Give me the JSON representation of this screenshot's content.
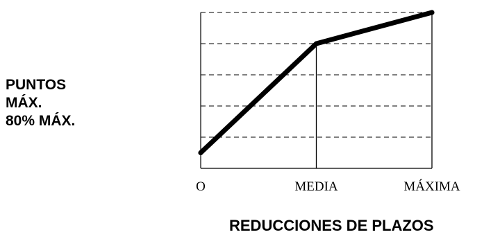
{
  "chart_data": {
    "type": "line",
    "title": "",
    "xlabel": "REDUCCIONES DE PLAZOS",
    "ylabel_lines": [
      "PUNTOS",
      "MÁX.",
      "80% MÁX."
    ],
    "categories": [
      "O",
      "MEDIA",
      "MÁXIMA"
    ],
    "x": [
      0,
      1,
      2
    ],
    "series": [
      {
        "values": [
          10,
          80,
          100
        ]
      }
    ],
    "ylim": [
      0,
      100
    ],
    "grid": "horizontal-dashed",
    "legend": "none",
    "line_color": "#000000"
  }
}
